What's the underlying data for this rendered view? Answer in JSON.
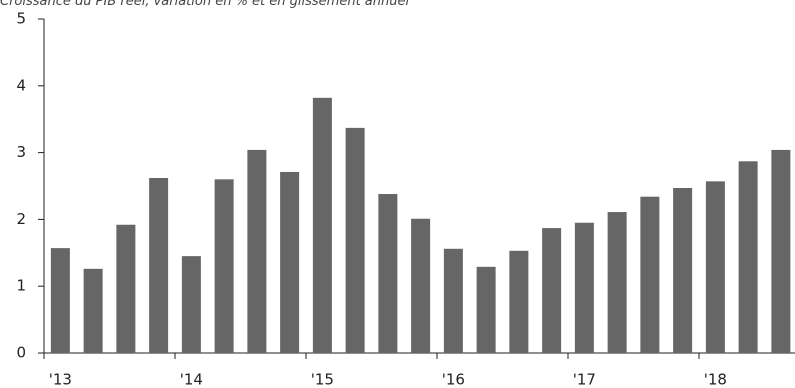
{
  "chart_data": {
    "type": "bar",
    "title": "Croissance du PIB réel, variation en % et en glissement annuel",
    "categories": [
      "'13",
      null,
      null,
      null,
      "'14",
      null,
      null,
      null,
      "'15",
      null,
      null,
      null,
      "'16",
      null,
      null,
      null,
      "'17",
      null,
      null,
      null,
      "'18",
      null,
      null
    ],
    "values": [
      1.57,
      1.26,
      1.92,
      2.62,
      1.45,
      2.6,
      3.04,
      2.71,
      3.82,
      3.37,
      2.38,
      2.01,
      1.56,
      1.29,
      1.53,
      1.87,
      1.95,
      2.11,
      2.34,
      2.47,
      2.57,
      2.87,
      3.04
    ],
    "color": "#666666",
    "ylim": [
      0,
      5
    ],
    "yticks": [
      0,
      1,
      2,
      3,
      4,
      5
    ],
    "grid": false
  }
}
